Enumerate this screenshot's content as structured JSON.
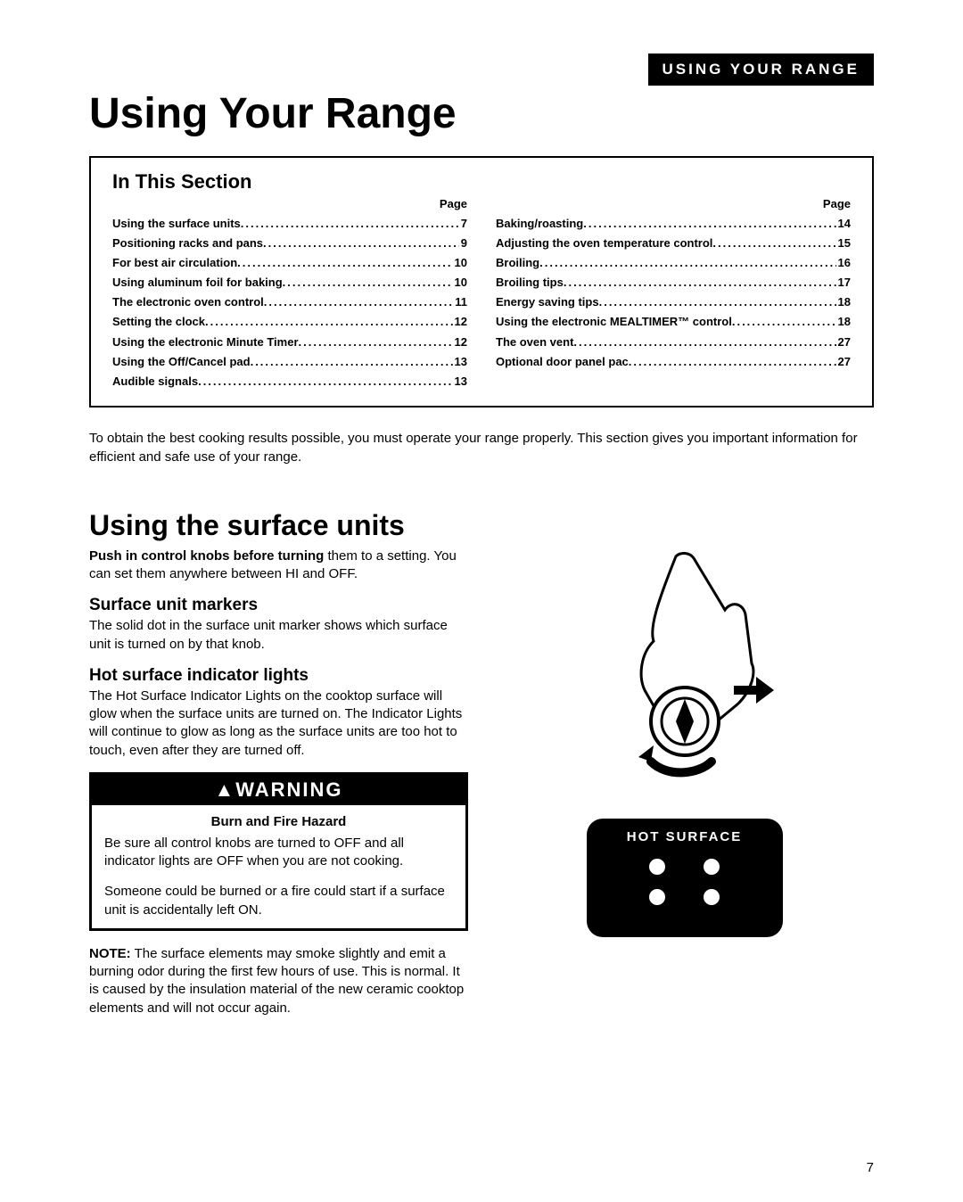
{
  "header_banner": "USING YOUR RANGE",
  "main_title": "Using Your Range",
  "toc": {
    "heading": "In This Section",
    "page_label": "Page",
    "left": [
      {
        "label": "Using the surface units",
        "page": "7"
      },
      {
        "label": "Positioning racks and pans",
        "page": "9"
      },
      {
        "label": "For best air circulation",
        "page": "10"
      },
      {
        "label": "Using aluminum foil for baking",
        "page": "10"
      },
      {
        "label": "The electronic oven control",
        "page": "11"
      },
      {
        "label": "Setting the clock",
        "page": "12"
      },
      {
        "label": "Using the electronic Minute Timer",
        "page": "12"
      },
      {
        "label": "Using the Off/Cancel pad",
        "page": "13"
      },
      {
        "label": "Audible signals",
        "page": "13"
      }
    ],
    "right": [
      {
        "label": "Baking/roasting",
        "page": "14"
      },
      {
        "label": "Adjusting the oven temperature control",
        "page": "15"
      },
      {
        "label": "Broiling",
        "page": "16"
      },
      {
        "label": "Broiling tips",
        "page": "17"
      },
      {
        "label": "Energy saving tips",
        "page": "18"
      },
      {
        "label": "Using the electronic MEALTIMER™ control",
        "page": "18"
      },
      {
        "label": "The oven vent",
        "page": "27"
      },
      {
        "label": "Optional door panel pac",
        "page": "27"
      }
    ]
  },
  "intro": "To obtain the best cooking results possible, you must operate your range properly. This section gives you important information for efficient and safe use of your range.",
  "section_title": "Using the surface units",
  "para1_bold": "Push in control knobs before turning",
  "para1_rest": " them to a setting. You can set them anywhere between HI and OFF.",
  "sub1": "Surface unit markers",
  "sub1_text": "The solid dot in the surface unit marker shows which surface unit is turned on by that knob.",
  "sub2": "Hot surface indicator lights",
  "sub2_text": "The Hot Surface Indicator Lights on the cooktop surface will glow when the surface units are turned on. The Indicator Lights will continue to glow as long as the surface units are too hot to touch, even after they are turned off.",
  "warning": {
    "header": "▲WARNING",
    "subtitle": "Burn and Fire Hazard",
    "p1": "Be sure all control knobs are turned to OFF and all indicator lights are OFF when you are not cooking.",
    "p2": "Someone could be burned or a fire could start if a surface unit is accidentally left ON."
  },
  "note_bold": "NOTE:",
  "note_text": " The surface elements may smoke slightly and emit a burning odor during the first few hours of use. This is normal. It is caused by the insulation material of the new ceramic cooktop elements and will not occur again.",
  "hot_surface_label": "HOT SURFACE",
  "page_number": "7"
}
